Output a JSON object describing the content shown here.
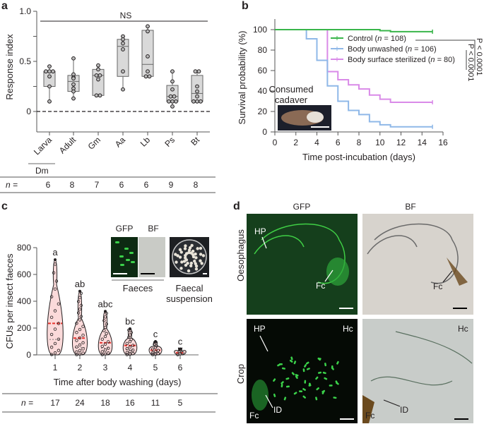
{
  "panels": {
    "a": {
      "label": "a"
    },
    "b": {
      "label": "b"
    },
    "c": {
      "label": "c"
    },
    "d": {
      "label": "d"
    }
  },
  "chart_data": [
    {
      "panel": "a",
      "type": "box",
      "title": "",
      "xlabel": "",
      "ylabel": "Response index",
      "ylim": [
        -0.2,
        1.0
      ],
      "yticks": [
        "0",
        "0.5",
        "1.0"
      ],
      "categories": [
        "Larva",
        "Adult",
        "Gm",
        "Aa",
        "Lb",
        "Ps",
        "Bt"
      ],
      "group_label": "Dm",
      "group_members": [
        "Larva"
      ],
      "annotation": "NS",
      "reference_line": 0,
      "n_label": "n =",
      "n": [
        6,
        8,
        7,
        6,
        6,
        9,
        8
      ],
      "boxes": [
        {
          "name": "Larva",
          "min": 0.1,
          "q1": 0.25,
          "median": 0.4,
          "q3": 0.4,
          "max": 0.45,
          "points": [
            0.45,
            0.4,
            0.4,
            0.4,
            0.35,
            0.25,
            0.1
          ]
        },
        {
          "name": "Adult",
          "min": 0.13,
          "q1": 0.2,
          "median": 0.3,
          "q3": 0.36,
          "max": 0.53,
          "points": [
            0.53,
            0.37,
            0.34,
            0.33,
            0.27,
            0.23,
            0.2,
            0.13
          ]
        },
        {
          "name": "Gm",
          "min": 0.16,
          "q1": 0.16,
          "median": 0.36,
          "q3": 0.42,
          "max": 0.46,
          "points": [
            0.46,
            0.42,
            0.36,
            0.36,
            0.32,
            0.16,
            0.16
          ]
        },
        {
          "name": "Aa",
          "min": 0.22,
          "q1": 0.35,
          "median": 0.65,
          "q3": 0.72,
          "max": 0.75,
          "points": [
            0.75,
            0.72,
            0.68,
            0.62,
            0.4,
            0.22
          ]
        },
        {
          "name": "Lb",
          "min": 0.35,
          "q1": 0.35,
          "median": 0.47,
          "q3": 0.81,
          "max": 0.85,
          "points": [
            0.85,
            0.8,
            0.55,
            0.4,
            0.35,
            0.35
          ]
        },
        {
          "name": "Ps",
          "min": 0.05,
          "q1": 0.1,
          "median": 0.15,
          "q3": 0.26,
          "max": 0.4,
          "points": [
            0.4,
            0.3,
            0.22,
            0.15,
            0.15,
            0.1,
            0.1,
            0.1,
            0.05
          ]
        },
        {
          "name": "Bt",
          "min": 0.1,
          "q1": 0.1,
          "median": 0.18,
          "q3": 0.36,
          "max": 0.4,
          "points": [
            0.4,
            0.4,
            0.25,
            0.2,
            0.15,
            0.1,
            0.1,
            0.1
          ]
        }
      ]
    },
    {
      "panel": "b",
      "type": "line",
      "subtype": "kaplan-meier",
      "title": "",
      "xlabel": "Time post-incubation (days)",
      "ylabel": "Survival probability (%)",
      "xlim": [
        0,
        16
      ],
      "ylim": [
        0,
        100
      ],
      "xticks": [
        "0",
        "2",
        "4",
        "6",
        "8",
        "10",
        "12",
        "14",
        "16"
      ],
      "yticks": [
        "0",
        "20",
        "40",
        "60",
        "80",
        "100"
      ],
      "legend_position": "upper right",
      "series": [
        {
          "name": "Control (n = 108)",
          "color": "#39b54a",
          "x": [
            0,
            10,
            11,
            15
          ],
          "y": [
            100,
            99,
            98,
            98
          ]
        },
        {
          "name": "Body unwashed (n = 106)",
          "color": "#8fb8e8",
          "x": [
            0,
            3,
            4,
            5,
            6,
            7,
            8,
            9,
            10,
            11,
            15
          ],
          "y": [
            100,
            91,
            70,
            45,
            30,
            21,
            17,
            10,
            7,
            5,
            5
          ]
        },
        {
          "name": "Body surface sterilized (n = 80)",
          "color": "#d98ae8",
          "x": [
            0,
            3,
            4,
            5,
            6,
            7,
            8,
            9,
            10,
            11,
            15
          ],
          "y": [
            100,
            100,
            100,
            59,
            51,
            46,
            42,
            36,
            32,
            29,
            29
          ]
        }
      ],
      "significance": [
        "P < 0.0001",
        "P < 0.0001"
      ],
      "inset": {
        "caption": [
          "Consumed",
          "cadaver"
        ]
      }
    },
    {
      "panel": "c",
      "type": "violin",
      "title": "",
      "xlabel": "Time after body washing (days)",
      "ylabel": "CFUs per insect faeces",
      "ylim": [
        0,
        800
      ],
      "yticks": [
        "0",
        "200",
        "400",
        "600",
        "800"
      ],
      "categories": [
        "1",
        "2",
        "3",
        "4",
        "5",
        "6"
      ],
      "letters": [
        "a",
        "ab",
        "abc",
        "bc",
        "c",
        "c"
      ],
      "n_label": "n =",
      "n": [
        17,
        24,
        18,
        16,
        11,
        5
      ],
      "max": [
        710,
        475,
        325,
        195,
        100,
        45
      ],
      "median": [
        235,
        125,
        90,
        70,
        35,
        15
      ],
      "q1": [
        115,
        55,
        50,
        40,
        20,
        10
      ],
      "q3": [
        525,
        275,
        140,
        100,
        50,
        25
      ],
      "inset": {
        "labels": [
          "GFP",
          "BF"
        ],
        "caption_left": "Faeces",
        "caption_right": [
          "Faecal",
          "suspension"
        ]
      }
    }
  ],
  "panel_d": {
    "columns": [
      "GFP",
      "BF"
    ],
    "rows": [
      "Oesophagus",
      "Crop"
    ],
    "annotations": {
      "oeso_gfp": [
        "HP",
        "Fc"
      ],
      "oeso_bf": [
        "Fc"
      ],
      "crop_gfp": [
        "HP",
        "Hc",
        "ID",
        "Fc"
      ],
      "crop_bf": [
        "Hc",
        "ID",
        "Fc"
      ]
    }
  },
  "colors": {
    "box_fill": "#d9d9d9",
    "violin_fill": "#fbdada",
    "median_red": "#e8342e",
    "control": "#39b54a",
    "unwashed": "#8fb8e8",
    "sterilized": "#d98ae8"
  }
}
